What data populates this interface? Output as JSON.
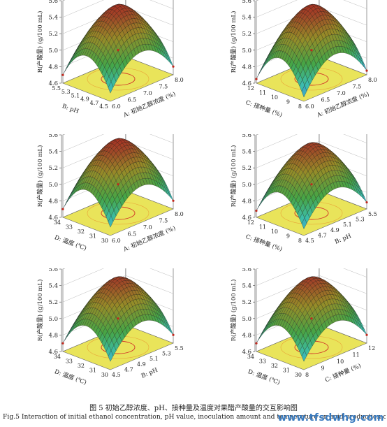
{
  "figure": {
    "caption_cn": "图 5   初始乙醇浓度、pH、接种量及温度对果醋产酸量的交互影响图",
    "caption_en": "Fig.5   Interaction of initial ethanol concentration, pH value, inoculation amount and temperature on acid production of fruit vinegar",
    "watermark": "www.tfsdwhg.com"
  },
  "chart_data": [
    {
      "type": "surface3d",
      "zlabel": "R(产酸量) (g/100 mL)",
      "zticks": [
        "4.6",
        "4.8",
        "5.0",
        "5.2",
        "5.4",
        "5.6"
      ],
      "zlim": [
        4.6,
        5.6
      ],
      "xlabel": "A: 初始乙醇浓度 (%)",
      "xticks": [
        "6.0",
        "6.5",
        "7.0",
        "7.5",
        "8.0"
      ],
      "ylabel": "B: pH",
      "yticks": [
        "4.5",
        "4.7",
        "4.9",
        "5.1",
        "5.3",
        "5.5"
      ],
      "peak": 5.5,
      "corner_min": 4.7
    },
    {
      "type": "surface3d",
      "zlabel": "R(产酸量) (g/100 mL)",
      "zticks": [
        "4.6",
        "4.8",
        "5.0",
        "5.2",
        "5.4",
        "5.6"
      ],
      "zlim": [
        4.6,
        5.6
      ],
      "xlabel": "A: 初始乙醇浓度 (%)",
      "xticks": [
        "6.0",
        "6.5",
        "7.0",
        "7.5",
        "8.0"
      ],
      "ylabel": "C: 接种量 (%)",
      "yticks": [
        "8",
        "9",
        "10",
        "11",
        "12"
      ],
      "peak": 5.5,
      "corner_min": 4.65
    },
    {
      "type": "surface3d",
      "zlabel": "R(产酸量) (g/100 mL)",
      "zticks": [
        "4.6",
        "4.8",
        "5.0",
        "5.2",
        "5.4",
        "5.6"
      ],
      "zlim": [
        4.6,
        5.6
      ],
      "xlabel": "A: 初始乙醇浓度 (%)",
      "xticks": [
        "6.0",
        "6.5",
        "7.0",
        "7.5",
        "8.0"
      ],
      "ylabel": "D: 温度 (℃)",
      "yticks": [
        "30",
        "31",
        "32",
        "33",
        "34"
      ],
      "peak": 5.5,
      "corner_min": 4.7
    },
    {
      "type": "surface3d",
      "zlabel": "R(产酸量) (g/100 mL)",
      "zticks": [
        "4.6",
        "4.8",
        "5.0",
        "5.2",
        "5.4",
        "5.6"
      ],
      "zlim": [
        4.6,
        5.6
      ],
      "xlabel": "B: pH",
      "xticks": [
        "4.5",
        "4.7",
        "4.9",
        "5.1",
        "5.3",
        "5.5"
      ],
      "ylabel": "C: 接种量 (%)",
      "yticks": [
        "8",
        "9",
        "10",
        "11",
        "12"
      ],
      "peak": 5.45,
      "corner_min": 4.68
    },
    {
      "type": "surface3d",
      "zlabel": "R(产酸量) (g/100 mL)",
      "zticks": [
        "4.6",
        "4.8",
        "5.0",
        "5.2",
        "5.4",
        "5.6"
      ],
      "zlim": [
        4.6,
        5.6
      ],
      "xlabel": "B: pH",
      "xticks": [
        "4.5",
        "4.7",
        "4.9",
        "5.1",
        "5.3",
        "5.5"
      ],
      "ylabel": "D: 温度 (℃)",
      "yticks": [
        "30",
        "31",
        "32",
        "33",
        "34"
      ],
      "peak": 5.45,
      "corner_min": 4.7
    },
    {
      "type": "surface3d",
      "zlabel": "R(产酸量) (g/100 mL)",
      "zticks": [
        "4.6",
        "4.8",
        "5.0",
        "5.2",
        "5.4",
        "5.6"
      ],
      "zlim": [
        4.6,
        5.6
      ],
      "xlabel": "C: 接种量 (%)",
      "xticks": [
        "8",
        "9",
        "10",
        "11",
        "12"
      ],
      "ylabel": "D: 温度 (℃)",
      "yticks": [
        "30",
        "31",
        "32",
        "33",
        "34"
      ],
      "peak": 5.45,
      "corner_min": 4.7
    }
  ]
}
